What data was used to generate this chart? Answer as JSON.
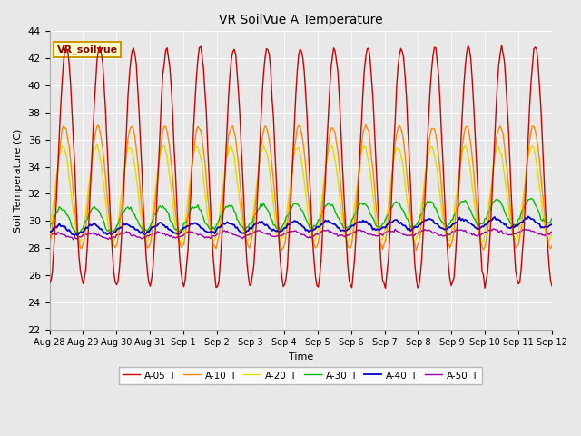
{
  "title": "VR SoilVue A Temperature",
  "ylabel": "Soil Temperature (C)",
  "xlabel": "Time",
  "ylim": [
    22,
    44
  ],
  "yticks": [
    22,
    24,
    26,
    28,
    30,
    32,
    34,
    36,
    38,
    40,
    42,
    44
  ],
  "background_color": "#e8e8e8",
  "plot_bg_color": "#e8e8e8",
  "grid_color": "#ffffff",
  "series_colors": {
    "A-05_T": "#cc0000",
    "A-10_T": "#ff8800",
    "A-20_T": "#dddd00",
    "A-30_T": "#00bb00",
    "A-40_T": "#0000cc",
    "A-50_T": "#9900aa"
  },
  "legend_box_color": "#ffffcc",
  "legend_box_border": "#cc9900",
  "sensor_label": "VR_soilvue",
  "time_labels": [
    "Aug 28",
    "Aug 29",
    "Aug 30",
    "Aug 31",
    "Sep 1",
    "Sep 2",
    "Sep 3",
    "Sep 4",
    "Sep 5",
    "Sep 6",
    "Sep 7",
    "Sep 8",
    "Sep 9",
    "Sep 10",
    "Sep 11",
    "Sep 12"
  ]
}
